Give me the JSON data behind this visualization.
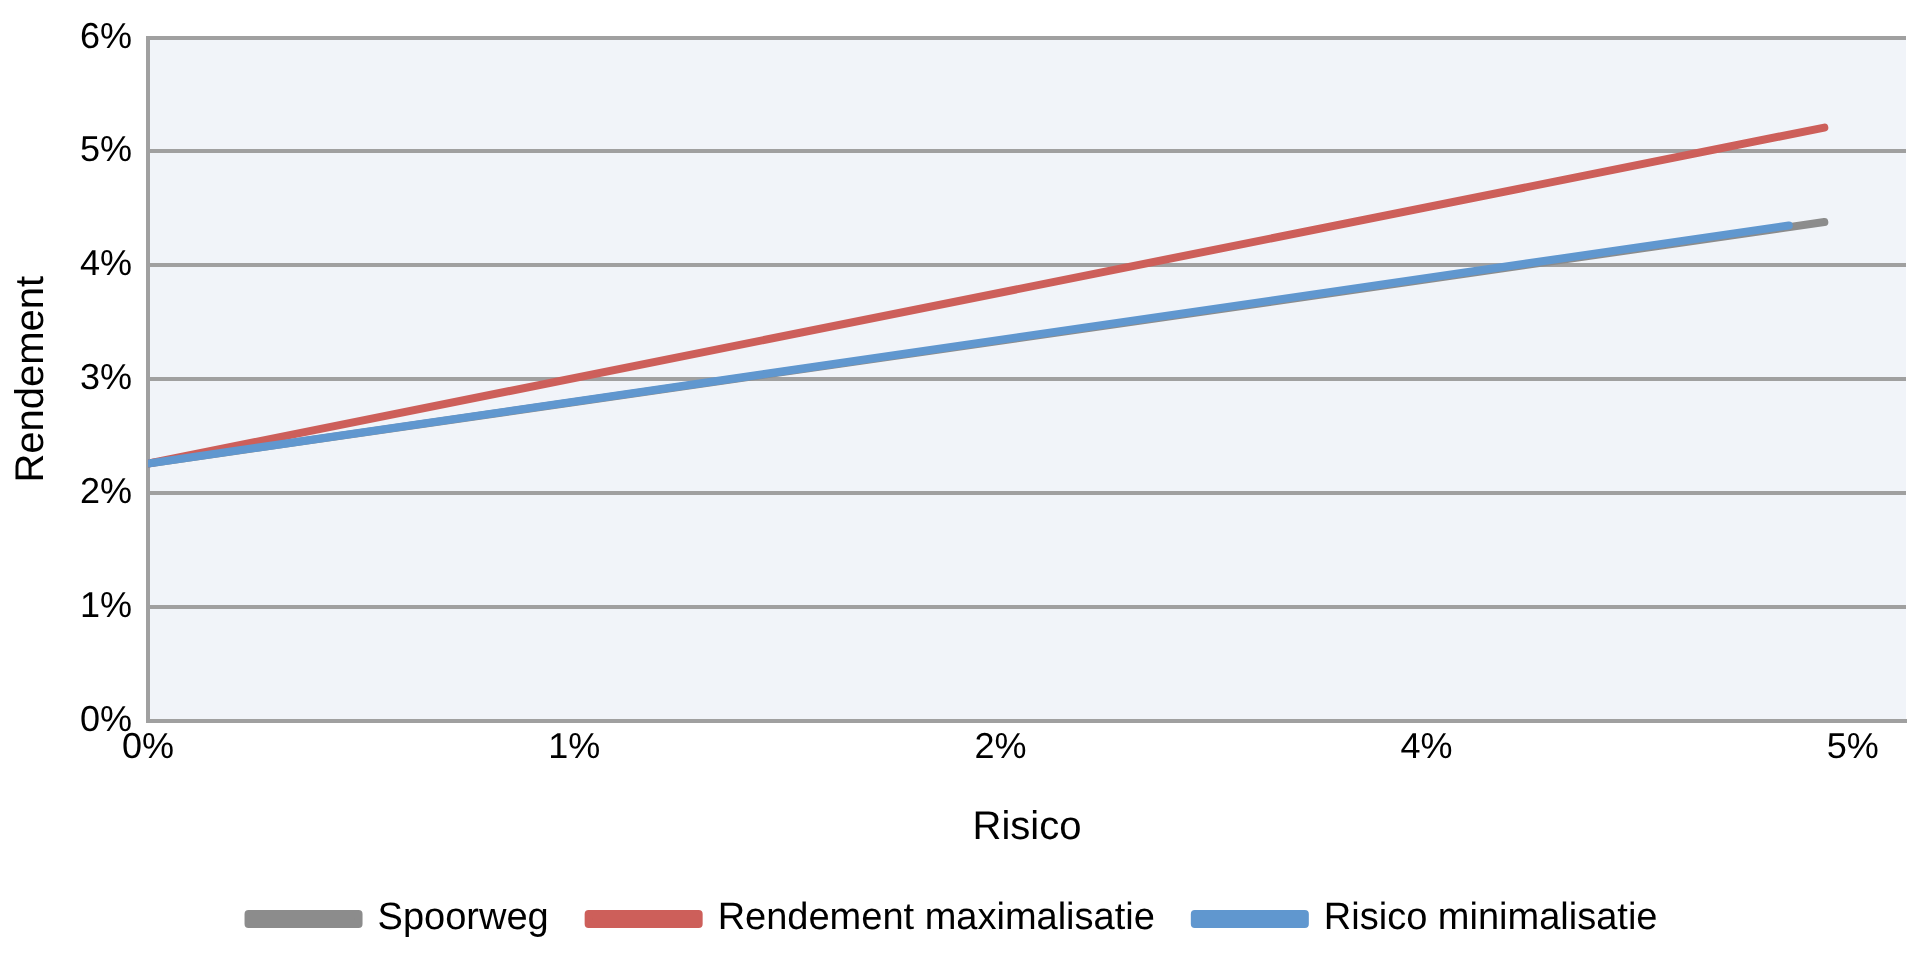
{
  "chart_data": {
    "type": "line",
    "xlabel": "Risico",
    "ylabel": "Rendement",
    "xlim": [
      0,
      4.95
    ],
    "xticks": [
      {
        "value": 0,
        "label": "0%"
      },
      {
        "value": 1.2,
        "label": "1%"
      },
      {
        "value": 2.4,
        "label": "2%"
      },
      {
        "value": 3.6,
        "label": "4%"
      },
      {
        "value": 4.8,
        "label": "5%"
      }
    ],
    "ylim": [
      0,
      6
    ],
    "yticks": [
      {
        "value": 0,
        "label": "0%"
      },
      {
        "value": 1,
        "label": "1%"
      },
      {
        "value": 2,
        "label": "2%"
      },
      {
        "value": 3,
        "label": "3%"
      },
      {
        "value": 4,
        "label": "4%"
      },
      {
        "value": 5,
        "label": "5%"
      },
      {
        "value": 6,
        "label": "6%"
      }
    ],
    "grid": "y",
    "legend": "bottom",
    "marker": "none",
    "line_style": "solid",
    "series": [
      {
        "name": "Spoorweg",
        "color": "#8c8c8c",
        "x": [
          0,
          4.72
        ],
        "values": [
          2.26,
          4.38
        ]
      },
      {
        "name": "Rendement maximalisatie",
        "color": "#cd5f5a",
        "x": [
          0,
          4.72
        ],
        "values": [
          2.26,
          5.21
        ]
      },
      {
        "name": "Risico minimalisatie",
        "color": "#6097cf",
        "x": [
          0,
          4.62
        ],
        "values": [
          2.26,
          4.35
        ]
      }
    ]
  }
}
